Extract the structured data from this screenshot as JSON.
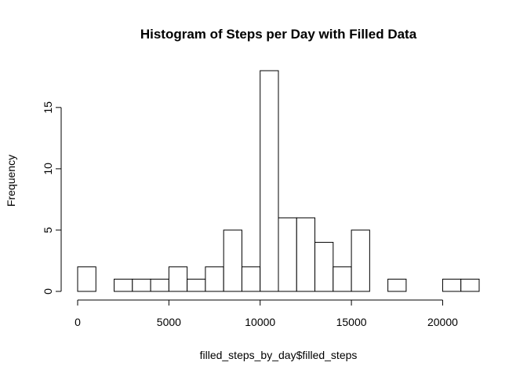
{
  "chart_data": {
    "type": "bar",
    "title": "Histogram of Steps per Day with Filled Data",
    "xlabel": "filled_steps_by_day$filled_steps",
    "ylabel": "Frequency",
    "bin_edges": [
      0,
      1000,
      2000,
      3000,
      4000,
      5000,
      6000,
      7000,
      8000,
      9000,
      10000,
      11000,
      12000,
      13000,
      14000,
      15000,
      16000,
      17000,
      18000,
      19000,
      20000,
      21000,
      22000
    ],
    "values": [
      2,
      0,
      1,
      1,
      1,
      2,
      1,
      2,
      5,
      2,
      18,
      6,
      6,
      4,
      2,
      5,
      0,
      1,
      0,
      0,
      1,
      1
    ],
    "xlim": [
      0,
      22000
    ],
    "ylim": [
      0,
      18
    ],
    "x_ticks": [
      0,
      5000,
      10000,
      15000,
      20000
    ],
    "y_ticks": [
      0,
      5,
      10,
      15
    ],
    "grid": false,
    "colors": {
      "bar_fill": "#ffffff",
      "bar_stroke": "#000000"
    }
  }
}
